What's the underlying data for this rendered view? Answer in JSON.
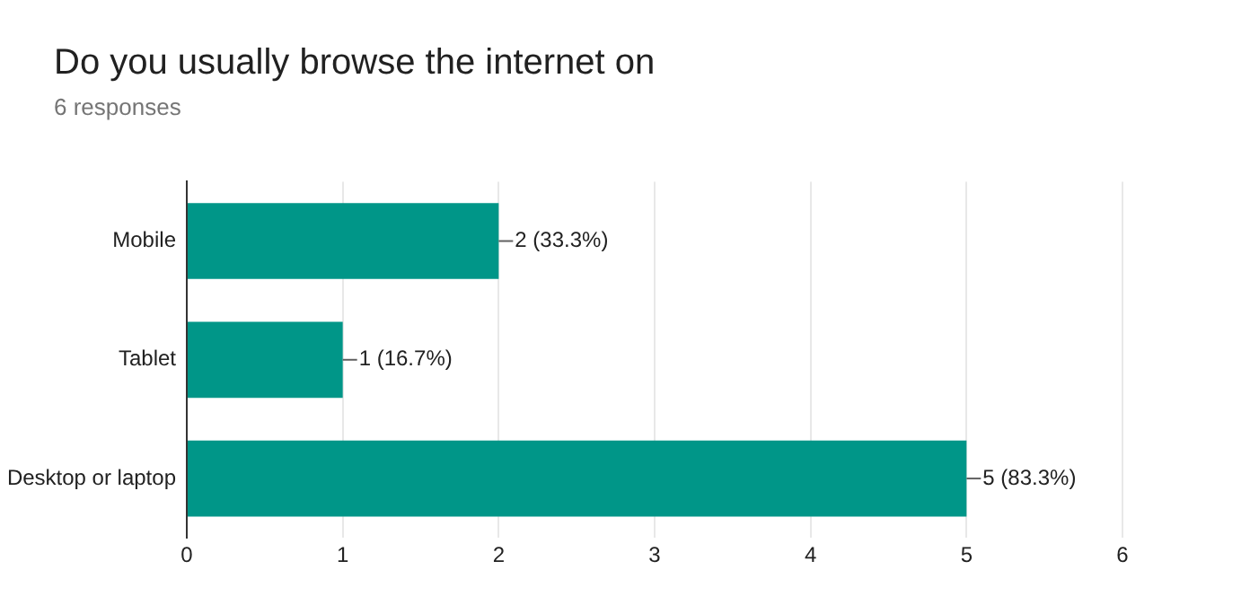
{
  "chart_data": {
    "type": "bar",
    "orientation": "horizontal",
    "title": "Do you usually browse the internet on",
    "subtitle": "6 responses",
    "categories": [
      "Mobile",
      "Tablet",
      "Desktop or laptop"
    ],
    "values": [
      2,
      1,
      5
    ],
    "value_labels": [
      "2 (33.3%)",
      "1 (16.7%)",
      "5 (83.3%)"
    ],
    "color": "#009688",
    "xlim": [
      0,
      6
    ],
    "xticks": [
      0,
      1,
      2,
      3,
      4,
      5,
      6
    ],
    "grid": "x",
    "legend": false
  }
}
